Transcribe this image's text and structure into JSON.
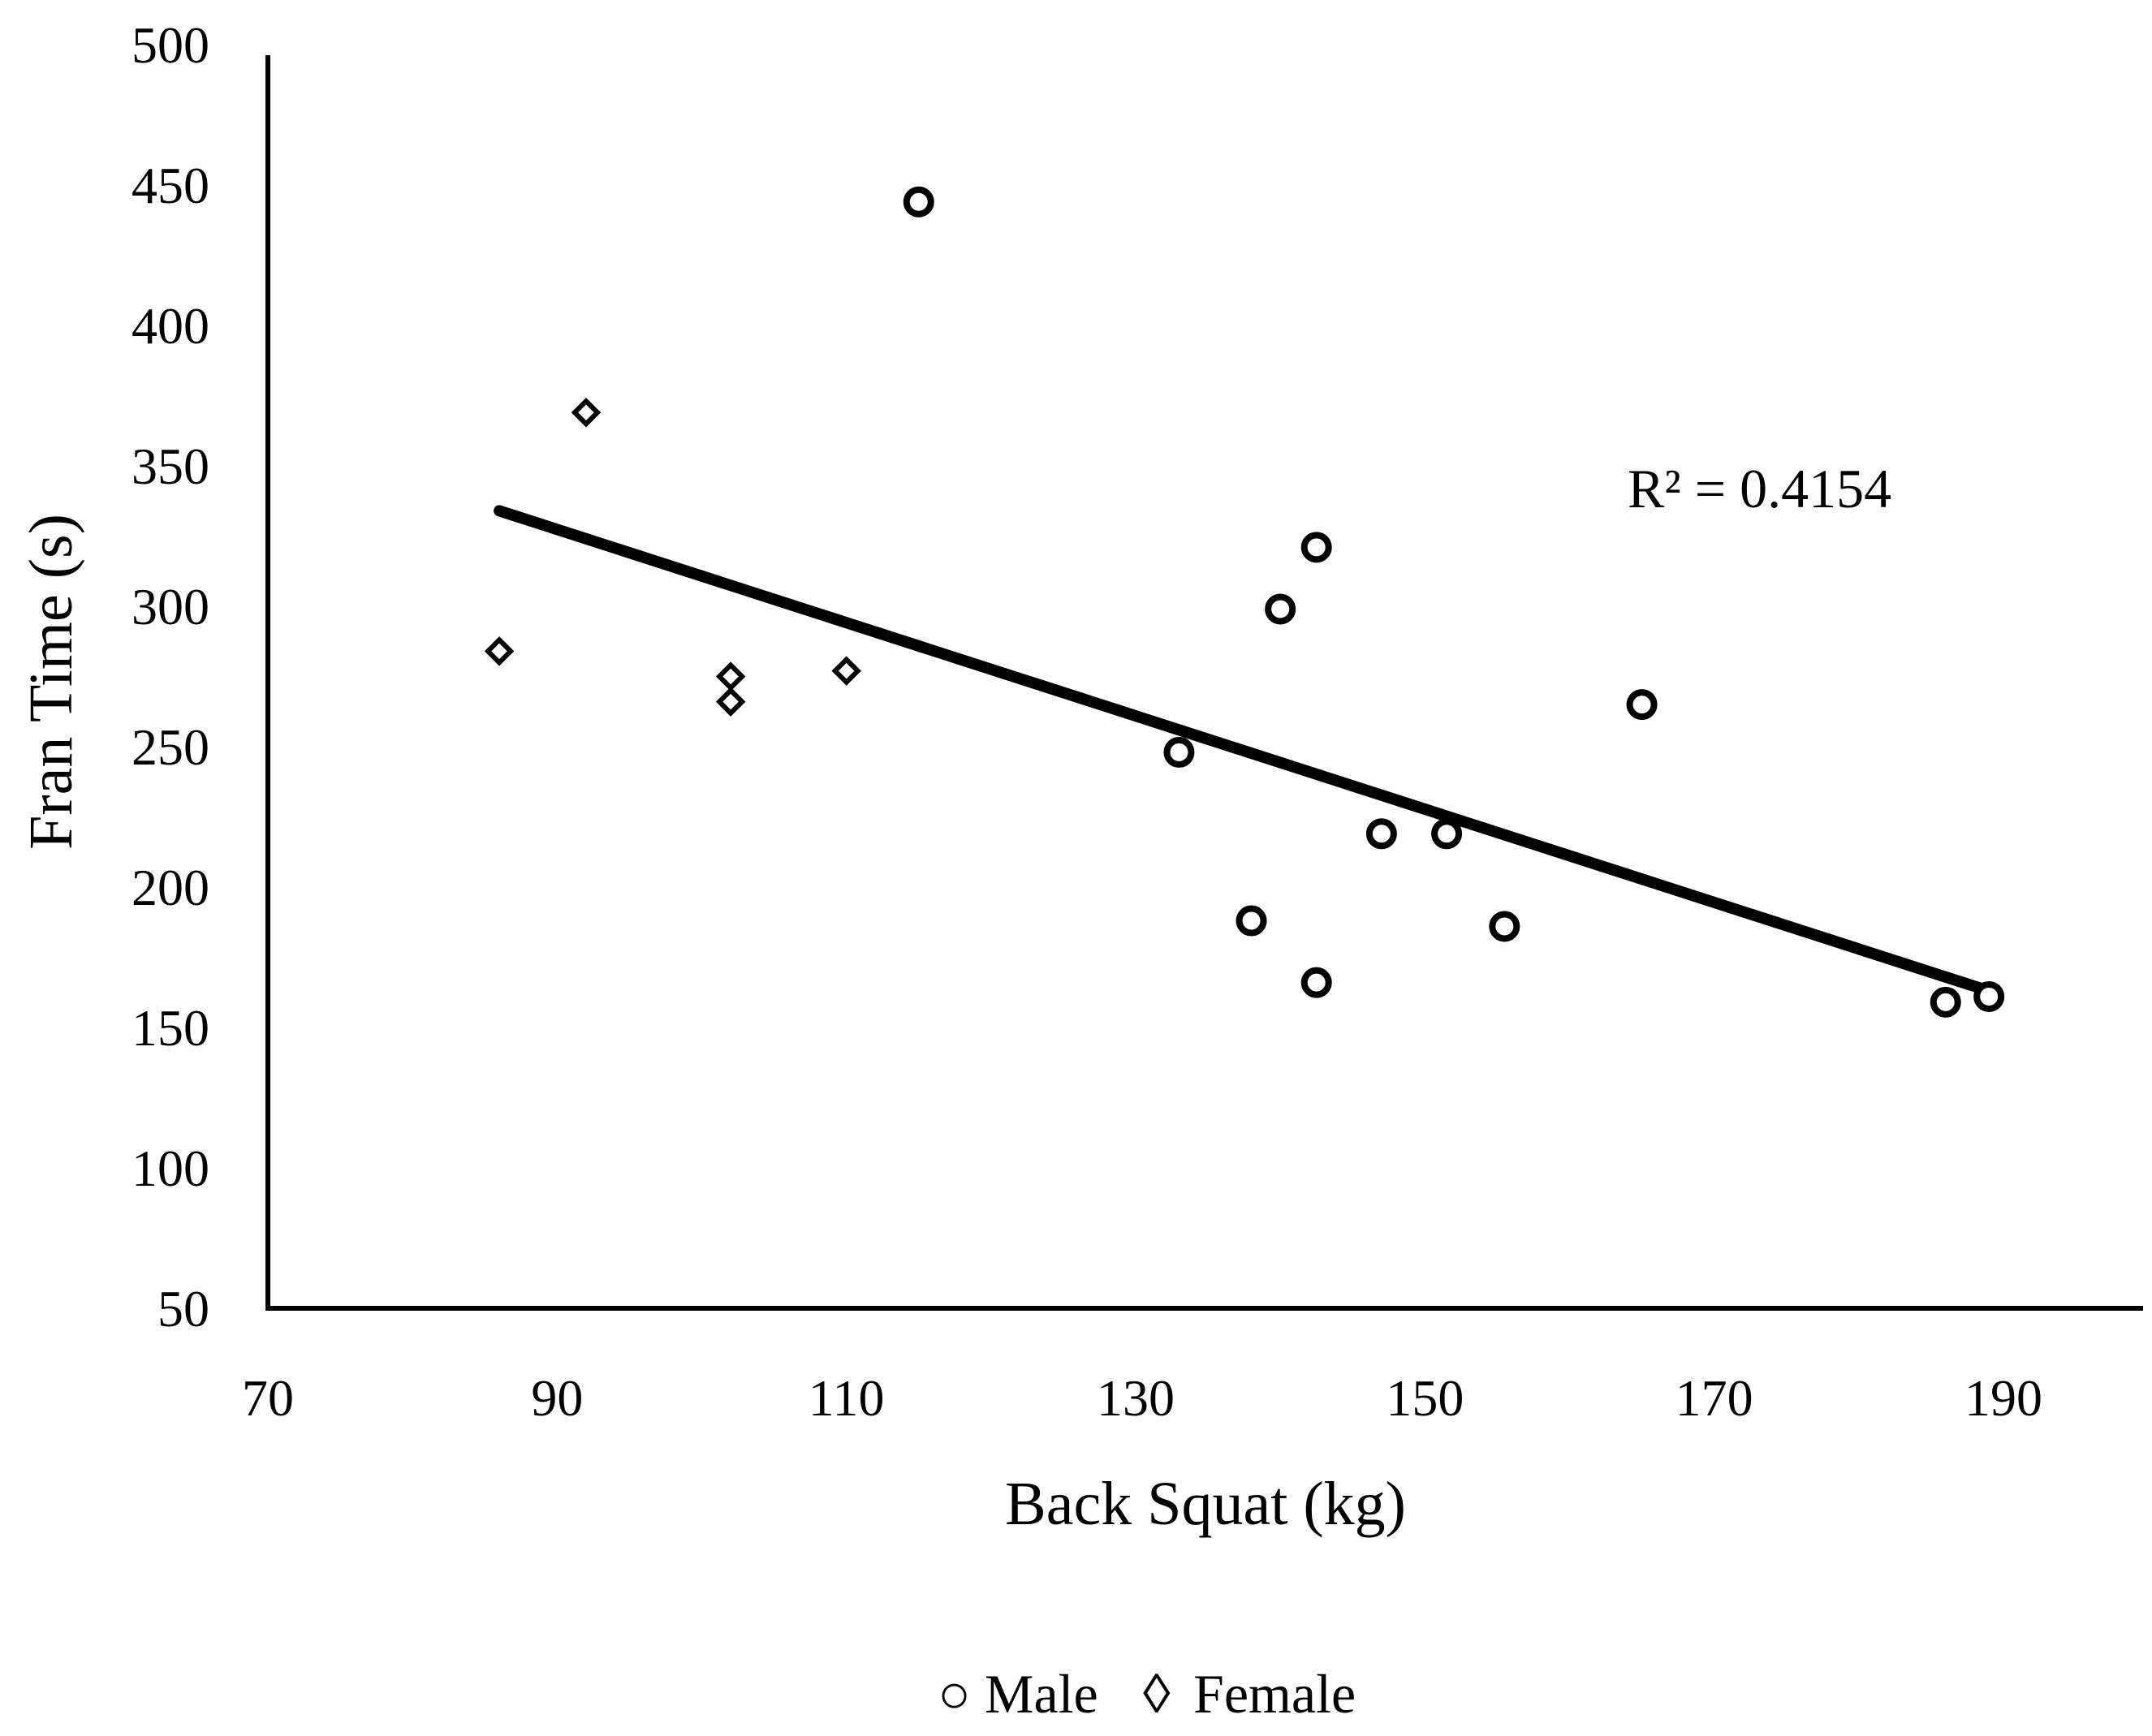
{
  "chart_data": {
    "type": "scatter",
    "title": "",
    "xlabel": "Back Squat (kg)",
    "ylabel": "Fran Time (s)",
    "xlim": [
      70,
      200
    ],
    "ylim": [
      50,
      500
    ],
    "xticks": [
      "70",
      "90",
      "110",
      "130",
      "150",
      "170",
      "190"
    ],
    "yticks": [
      "50",
      "100",
      "150",
      "200",
      "250",
      "300",
      "350",
      "400",
      "450",
      "500"
    ],
    "grid": false,
    "series": [
      {
        "name": "Male",
        "marker": "circle",
        "points": [
          {
            "x": 115,
            "y": 444
          },
          {
            "x": 142.5,
            "y": 321
          },
          {
            "x": 140,
            "y": 299
          },
          {
            "x": 165,
            "y": 265
          },
          {
            "x": 133,
            "y": 248
          },
          {
            "x": 147,
            "y": 219
          },
          {
            "x": 151.5,
            "y": 219
          },
          {
            "x": 138,
            "y": 188
          },
          {
            "x": 155.5,
            "y": 186
          },
          {
            "x": 142.5,
            "y": 166
          },
          {
            "x": 186,
            "y": 159
          },
          {
            "x": 189,
            "y": 161
          }
        ]
      },
      {
        "name": "Female",
        "marker": "diamond",
        "points": [
          {
            "x": 92,
            "y": 369
          },
          {
            "x": 86,
            "y": 284
          },
          {
            "x": 102,
            "y": 275
          },
          {
            "x": 102,
            "y": 266
          },
          {
            "x": 110,
            "y": 277
          }
        ]
      }
    ],
    "trendline": {
      "x_start": 86,
      "y_start": 334,
      "x_end": 189,
      "y_end": 163
    },
    "annotation": "R² = 0.4154",
    "legend": {
      "position": "bottom-center",
      "entries": [
        {
          "symbol": "○",
          "label": "Male"
        },
        {
          "symbol": "◊",
          "label": "Female"
        }
      ]
    }
  }
}
